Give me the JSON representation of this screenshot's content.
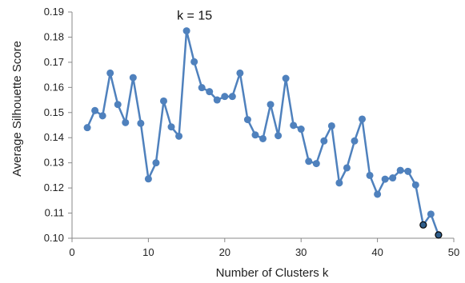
{
  "chart_data": {
    "type": "line",
    "title": "",
    "xlabel": "Number of Clusters k",
    "ylabel": "Average Silhouette Score",
    "xlim": [
      0,
      50
    ],
    "ylim": [
      0.1,
      0.19
    ],
    "x_ticks": [
      0,
      10,
      20,
      30,
      40,
      50
    ],
    "y_ticks": [
      0.1,
      0.11,
      0.12,
      0.13,
      0.14,
      0.15,
      0.16,
      0.17,
      0.18,
      0.19
    ],
    "y_tick_labels": [
      "0.10",
      "0.11",
      "0.12",
      "0.13",
      "0.14",
      "0.15",
      "0.16",
      "0.17",
      "0.18",
      "0.19"
    ],
    "grid": false,
    "legend": "none",
    "colors": {
      "line": "#4f81bd",
      "marker": "#4f81bd",
      "highlight_marker": "#2f5d8a"
    },
    "annotation": {
      "text": "k = 15",
      "x": 15,
      "y": 0.1825
    },
    "series": [
      {
        "x": [
          2,
          3,
          4,
          5,
          6,
          7,
          8,
          9,
          10,
          11,
          12,
          13,
          14,
          15,
          16,
          17,
          18,
          19,
          20,
          21,
          22,
          23,
          24,
          25,
          26,
          27,
          28,
          29,
          30,
          31,
          32,
          33,
          34,
          35,
          36,
          37,
          38,
          39,
          40,
          41,
          42,
          43,
          44,
          45,
          46,
          47,
          48
        ],
        "values": [
          0.144,
          0.1508,
          0.1487,
          0.1657,
          0.1532,
          0.146,
          0.1639,
          0.1457,
          0.1236,
          0.13,
          0.1546,
          0.1443,
          0.1406,
          0.1825,
          0.1702,
          0.1599,
          0.1583,
          0.155,
          0.1564,
          0.1564,
          0.1657,
          0.1472,
          0.1411,
          0.1396,
          0.1532,
          0.1408,
          0.1636,
          0.1449,
          0.1434,
          0.1306,
          0.1297,
          0.1387,
          0.1447,
          0.122,
          0.128,
          0.1387,
          0.1474,
          0.125,
          0.1175,
          0.1235,
          0.124,
          0.127,
          0.1266,
          0.1212,
          0.1053,
          0.1096,
          0.1013
        ]
      }
    ],
    "highlight_points": [
      46,
      48
    ]
  }
}
